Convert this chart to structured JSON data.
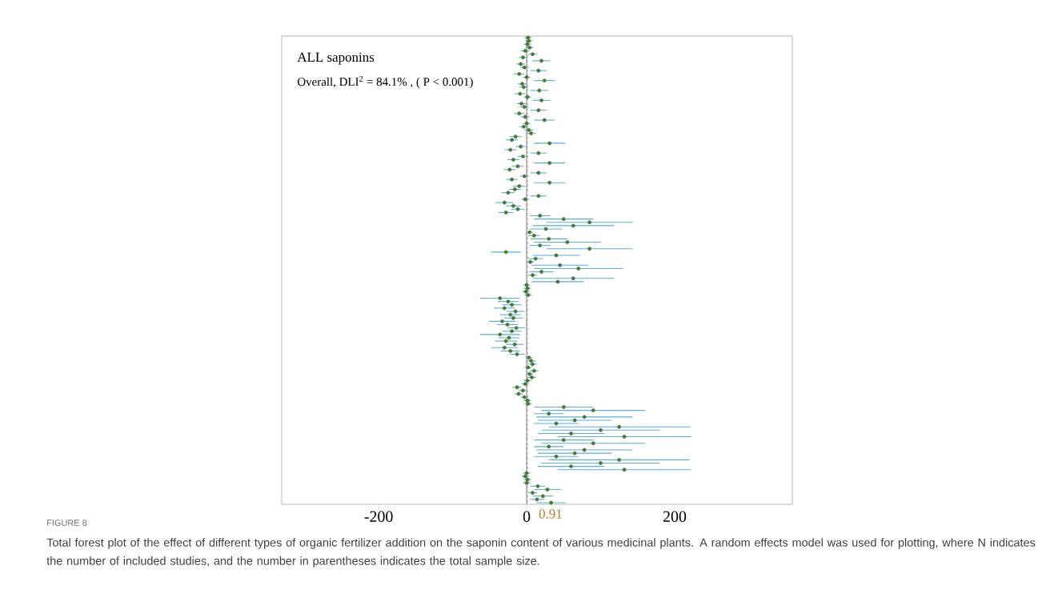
{
  "chart_data": {
    "type": "scatter",
    "orientation": "horizontal",
    "title": "ALL saponins",
    "subtitle": "Overall, DLI$^{2}$ = 84.1% , ( P < 0.001)",
    "categories": [
      null,
      null,
      null,
      null,
      null,
      null,
      null,
      null,
      null,
      null,
      null,
      null,
      null,
      null,
      null,
      null,
      null,
      null,
      null,
      null,
      null,
      null,
      null,
      null,
      null,
      null,
      null,
      null,
      null,
      null,
      null,
      null,
      null,
      null,
      null,
      null,
      null,
      null,
      null,
      null,
      null,
      null,
      null,
      null,
      null,
      null,
      null,
      null,
      null,
      null,
      null,
      null,
      null,
      null,
      null,
      null,
      null,
      null,
      null,
      null,
      null,
      null,
      null,
      null,
      null,
      null,
      null,
      null,
      null,
      null,
      null,
      null,
      null,
      null,
      null,
      null,
      null,
      null,
      null,
      null,
      null,
      null,
      null,
      null,
      null,
      null,
      null,
      null,
      null,
      null,
      null,
      null,
      null,
      null,
      null,
      null,
      null,
      null,
      null,
      null,
      null,
      null,
      null,
      null,
      null,
      null,
      null,
      null,
      null,
      null,
      null,
      null,
      null,
      null,
      null,
      null,
      null,
      null,
      null,
      null,
      null,
      null,
      null,
      null,
      null,
      null,
      null,
      null,
      null,
      null,
      null,
      null,
      null,
      null,
      null,
      null,
      null,
      null,
      null,
      null,
      null,
      null
    ],
    "series": [
      {
        "color": "#4a7a2e",
        "values": [
          2,
          3,
          1,
          4,
          -2,
          8,
          -5,
          20,
          -8,
          -3,
          16,
          -10,
          0,
          24,
          -6,
          -4,
          17,
          -9,
          1,
          20,
          -7,
          -3,
          16,
          -10,
          -2,
          24,
          0,
          -4,
          3,
          6,
          -15,
          -20,
          31,
          -8,
          -22,
          16,
          -5,
          -18,
          31,
          -12,
          -23,
          16,
          -3,
          -20,
          31,
          -10,
          -16,
          -25,
          16,
          -2,
          -30,
          -18,
          -12,
          -28,
          18,
          50,
          85,
          63,
          26,
          4,
          10,
          30,
          55,
          18,
          85,
          -28,
          40,
          12,
          5,
          45,
          70,
          20,
          8,
          63,
          42,
          0,
          1,
          -1,
          2,
          -36,
          -25,
          -20,
          -30,
          -15,
          -22,
          -18,
          -33,
          -26,
          -14,
          -20,
          -36,
          -24,
          -28,
          -16,
          -30,
          -22,
          -13,
          3,
          6,
          8,
          2,
          10,
          4,
          7,
          1,
          -2,
          -13,
          -5,
          -11,
          -3,
          1,
          2,
          50,
          90,
          30,
          78,
          65,
          40,
          125,
          100,
          60,
          132,
          50,
          90,
          30,
          78,
          65,
          40,
          125,
          100,
          60,
          132,
          0,
          -2,
          1,
          0,
          15,
          28,
          8,
          22,
          14,
          33
        ],
        "errors": [
          5,
          5,
          5,
          5,
          6,
          6,
          6,
          12,
          6,
          6,
          11,
          7,
          5,
          14,
          6,
          6,
          12,
          7,
          5,
          12,
          6,
          6,
          11,
          7,
          6,
          14,
          5,
          6,
          6,
          6,
          8,
          8,
          21,
          7,
          8,
          11,
          7,
          8,
          21,
          8,
          8,
          11,
          6,
          8,
          21,
          8,
          8,
          9,
          11,
          5,
          12,
          10,
          9,
          10,
          14,
          40,
          58,
          55,
          22,
          5,
          8,
          25,
          45,
          14,
          58,
          20,
          32,
          10,
          5,
          38,
          60,
          16,
          6,
          55,
          35,
          5,
          5,
          5,
          5,
          27,
          14,
          13,
          14,
          12,
          14,
          13,
          18,
          14,
          12,
          13,
          27,
          14,
          15,
          12,
          18,
          13,
          10,
          5,
          6,
          6,
          5,
          6,
          5,
          6,
          5,
          5,
          6,
          6,
          6,
          5,
          5,
          5,
          40,
          70,
          20,
          65,
          50,
          30,
          95,
          80,
          45,
          90,
          40,
          70,
          20,
          65,
          50,
          30,
          95,
          80,
          45,
          90,
          5,
          5,
          5,
          5,
          10,
          18,
          6,
          14,
          10,
          20
        ]
      }
    ],
    "xlim": [
      -331,
      359
    ],
    "xticks": [
      -200,
      0,
      200
    ],
    "ref_lines": [
      {
        "axis": "x",
        "value": 0,
        "color": "#a0a0a0",
        "line_style": "solid"
      },
      {
        "axis": "x",
        "value": 0.91,
        "color": "#c89a9a",
        "line_style": "dashed",
        "label": "0.91"
      }
    ],
    "annotations": [
      "FIGURE 8",
      "Total forest plot of the effect of different types of organic fertilizer addition on the saponin content of various medicinal plants. A random effects model was used for plotting, where N indicates the number of included studies, and the number in parentheses indicates the total sample size."
    ]
  }
}
